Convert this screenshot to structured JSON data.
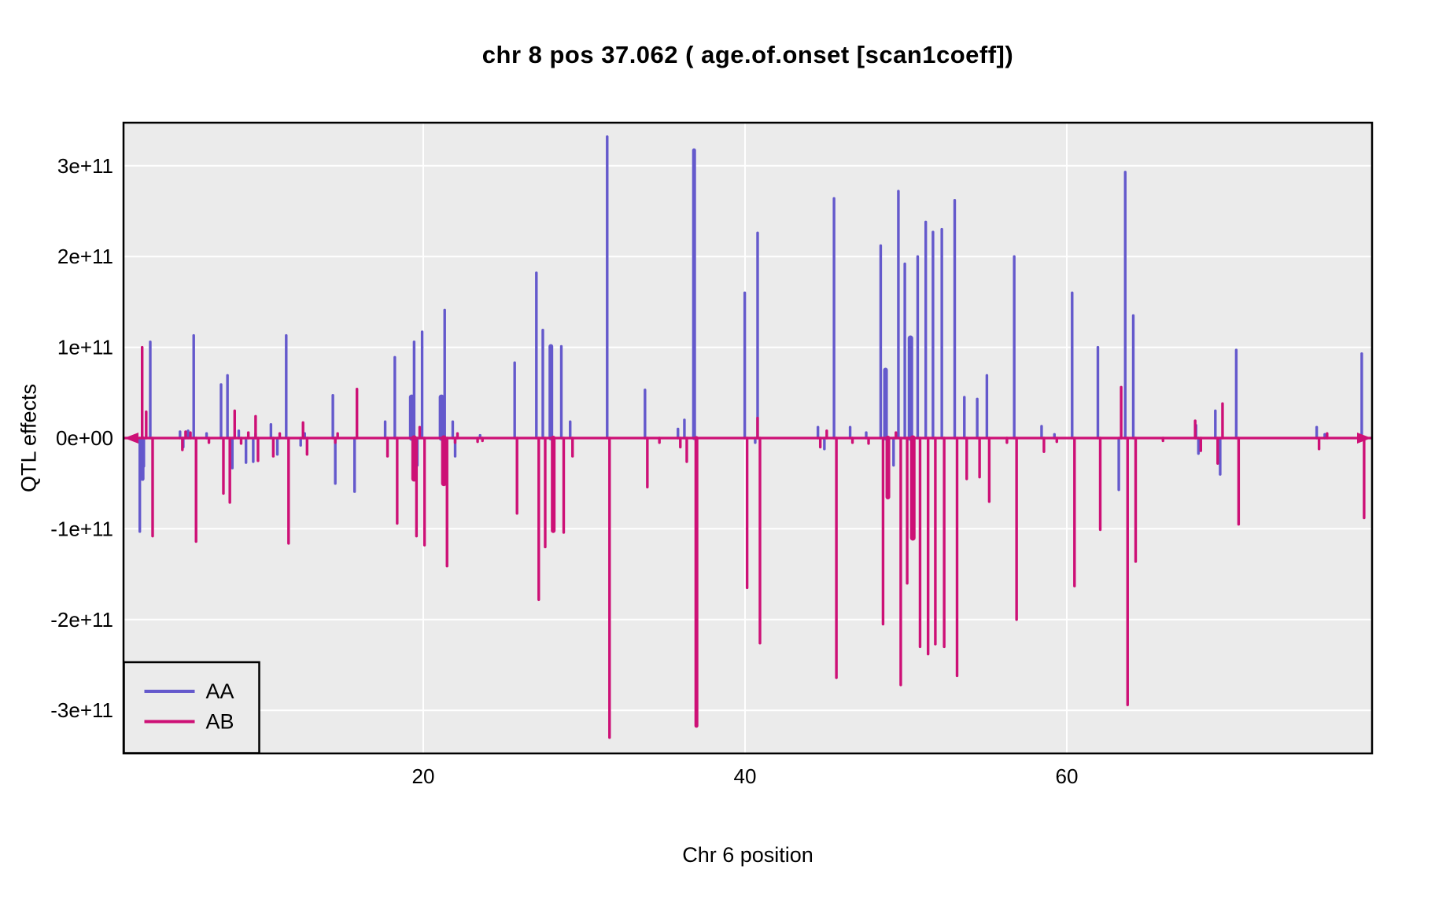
{
  "title": "chr 8 pos 37.062 ( age.of.onset  [scan1coeff])",
  "colors": {
    "aa": "#6459CC",
    "ab": "#CD1076",
    "panel_bg": "#EBEBEB",
    "grid": "#FFFFFF",
    "border": "#000000",
    "text": "#000000"
  },
  "chart_data": {
    "type": "line",
    "subtype": "qtl-coefficient-spike-plot",
    "title": "chr 8 pos 37.062 ( age.of.onset  [scan1coeff])",
    "xlabel": "Chr 6 position",
    "ylabel": "QTL effects",
    "xlim": [
      1.4,
      79.0
    ],
    "ylim": [
      -347000000000.0,
      347000000000.0
    ],
    "x_ticks": [
      20,
      40,
      60
    ],
    "y_ticks": [
      {
        "label": "3e+11",
        "value": 3
      },
      {
        "label": "2e+11",
        "value": 2
      },
      {
        "label": "1e+11",
        "value": 1
      },
      {
        "label": "0e+00",
        "value": 0
      },
      {
        "label": "-1e+11",
        "value": -1
      },
      {
        "label": "-2e+11",
        "value": -2
      },
      {
        "label": "-3e+11",
        "value": -3
      }
    ],
    "grid": true,
    "baseline": {
      "value": 0,
      "arrow_left": true,
      "arrow_right": true,
      "color_on_top": "ab"
    },
    "legend": {
      "position": "bottom-left",
      "entries": [
        {
          "label": "AA",
          "series": "aa"
        },
        {
          "label": "AB",
          "series": "ab"
        }
      ]
    },
    "value_unit": "1e+11",
    "spike_format": [
      "x",
      "aa_value",
      "ab_value",
      "optional_px_width"
    ],
    "spikes": [
      [
        2.45,
        -1.03,
        1.0
      ],
      [
        2.62,
        -0.45,
        0,
        5
      ],
      [
        2.7,
        -0.31,
        0.29
      ],
      [
        3.1,
        1.06,
        -1.08
      ],
      [
        4.95,
        0.07,
        -0.13
      ],
      [
        5.15,
        -0.1,
        0.07
      ],
      [
        5.45,
        0.08,
        0.06
      ],
      [
        5.8,
        1.13,
        -1.14
      ],
      [
        6.6,
        0.05,
        -0.05
      ],
      [
        7.5,
        0.59,
        -0.61
      ],
      [
        7.9,
        0.69,
        -0.71
      ],
      [
        8.2,
        -0.33,
        0.3
      ],
      [
        8.6,
        0.08,
        -0.06
      ],
      [
        9.05,
        -0.27,
        0.06
      ],
      [
        9.5,
        -0.26,
        0.24
      ],
      [
        9.65,
        0.05,
        -0.25
      ],
      [
        10.6,
        0.15,
        -0.2
      ],
      [
        11.0,
        -0.18,
        0.05
      ],
      [
        11.55,
        1.13,
        -1.16
      ],
      [
        12.45,
        -0.08,
        0.17
      ],
      [
        12.7,
        0.05,
        -0.18
      ],
      [
        14.45,
        0.47,
        -0.05
      ],
      [
        14.6,
        -0.5,
        0.05
      ],
      [
        15.8,
        -0.59,
        0.54
      ],
      [
        17.7,
        0.18,
        -0.2
      ],
      [
        18.3,
        0.89,
        -0.94
      ],
      [
        19.35,
        0.45,
        -0.45,
        7
      ],
      [
        19.5,
        1.06,
        -1.08
      ],
      [
        19.7,
        -0.3,
        0.12
      ],
      [
        20.0,
        1.17,
        -1.18
      ],
      [
        21.2,
        0.45,
        -0.5,
        7
      ],
      [
        21.4,
        1.41,
        -1.41
      ],
      [
        21.9,
        0.18,
        -0.05
      ],
      [
        22.05,
        -0.2,
        0.05
      ],
      [
        23.3,
        0,
        -0.04
      ],
      [
        23.6,
        0.03,
        -0.03
      ],
      [
        25.75,
        0.83,
        -0.83
      ],
      [
        27.1,
        1.82,
        -1.78
      ],
      [
        27.5,
        1.19,
        -1.2
      ],
      [
        28.0,
        1.01,
        -1.02,
        6
      ],
      [
        28.65,
        1.01,
        -1.04
      ],
      [
        29.2,
        0.18,
        -0.2
      ],
      [
        31.5,
        3.32,
        -3.3
      ],
      [
        33.85,
        0.53,
        -0.54
      ],
      [
        34.6,
        0,
        -0.05
      ],
      [
        35.9,
        0.1,
        -0.1
      ],
      [
        36.3,
        0.2,
        -0.26
      ],
      [
        36.9,
        3.17,
        -3.17,
        5
      ],
      [
        40.05,
        1.6,
        -1.65
      ],
      [
        40.7,
        -0.05,
        0.22
      ],
      [
        40.85,
        2.26,
        -2.26
      ],
      [
        44.6,
        0.12,
        -0.1
      ],
      [
        45.0,
        -0.12,
        0.08
      ],
      [
        45.6,
        2.64,
        -2.64
      ],
      [
        46.6,
        0.12,
        -0.05
      ],
      [
        47.6,
        0.06,
        -0.06
      ],
      [
        48.5,
        2.12,
        -2.05
      ],
      [
        48.8,
        0.75,
        -0.65,
        6
      ],
      [
        49.3,
        -0.3,
        0.06
      ],
      [
        49.6,
        2.72,
        -2.72
      ],
      [
        50.0,
        1.92,
        -1.6
      ],
      [
        50.35,
        1.1,
        -1.1,
        7
      ],
      [
        50.8,
        2.0,
        -2.3
      ],
      [
        51.3,
        2.38,
        -2.38
      ],
      [
        51.75,
        2.27,
        -2.27
      ],
      [
        52.3,
        2.3,
        -2.3
      ],
      [
        53.1,
        2.62,
        -2.62
      ],
      [
        53.7,
        0.45,
        -0.45
      ],
      [
        54.5,
        0.43,
        -0.43
      ],
      [
        55.1,
        0.69,
        -0.7
      ],
      [
        56.2,
        0,
        -0.05
      ],
      [
        56.8,
        2.0,
        -2.0
      ],
      [
        58.5,
        0.13,
        -0.15
      ],
      [
        59.3,
        0.04,
        -0.04
      ],
      [
        60.4,
        1.6,
        -1.63
      ],
      [
        62.0,
        1.0,
        -1.01
      ],
      [
        63.3,
        -0.57,
        0.56
      ],
      [
        63.7,
        2.93,
        -2.94
      ],
      [
        64.2,
        1.35,
        -1.36
      ],
      [
        65.9,
        0,
        -0.03
      ],
      [
        67.9,
        0,
        0.19
      ],
      [
        68.1,
        0.14,
        0
      ],
      [
        68.25,
        -0.17,
        -0.14
      ],
      [
        69.3,
        0.3,
        -0.28
      ],
      [
        69.6,
        -0.4,
        0.38
      ],
      [
        70.6,
        0.97,
        -0.95
      ],
      [
        75.6,
        0.12,
        -0.12
      ],
      [
        76.1,
        0.04,
        0.05
      ],
      [
        78.4,
        0.93,
        -0.88
      ]
    ]
  }
}
